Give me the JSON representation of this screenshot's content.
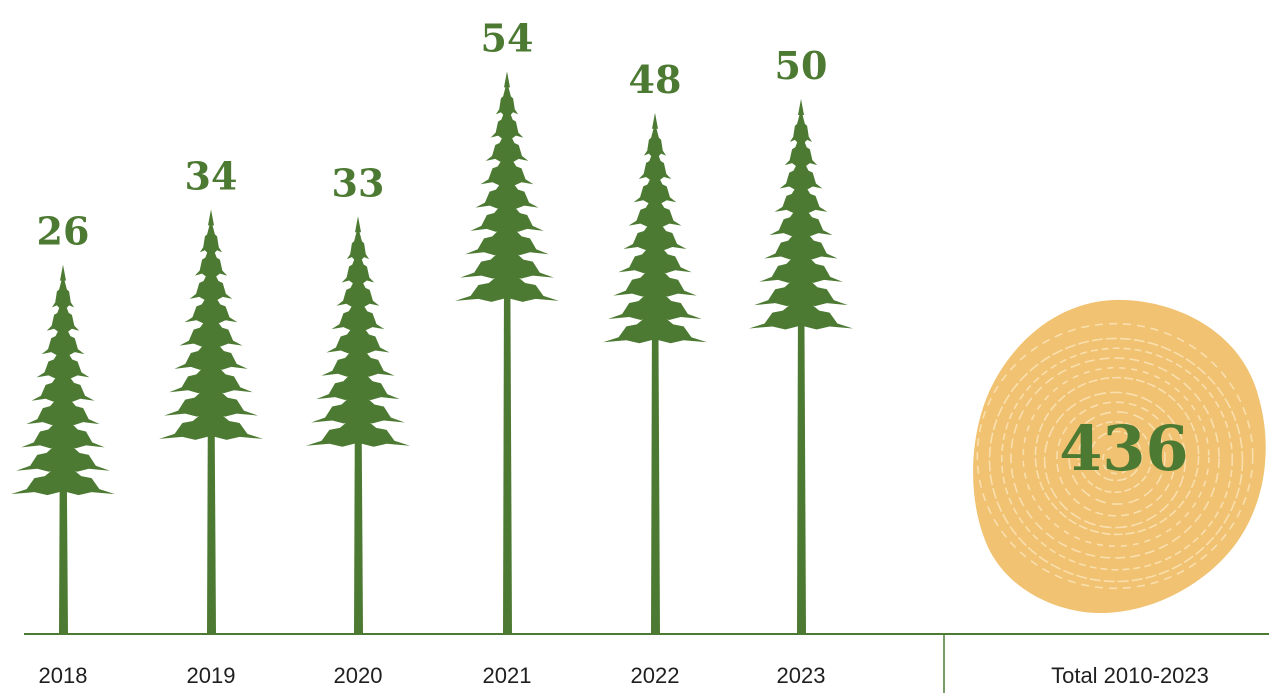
{
  "chart_data": {
    "type": "bar",
    "categories": [
      "2018",
      "2019",
      "2020",
      "2021",
      "2022",
      "2023"
    ],
    "values": [
      26,
      34,
      33,
      54,
      48,
      50
    ],
    "total": {
      "label": "Total 2010-2023",
      "value": 436
    }
  },
  "colors": {
    "tree": "#4d7a33",
    "value_text": "#4d7a33",
    "axis": "#4d7a33",
    "year_text": "#1f1f1f",
    "stump": "#f0c271",
    "stump_rings": "#fbe4b8"
  },
  "icons": {
    "bar_mark": "evergreen-tree-icon",
    "total_mark": "tree-stump-icon"
  }
}
